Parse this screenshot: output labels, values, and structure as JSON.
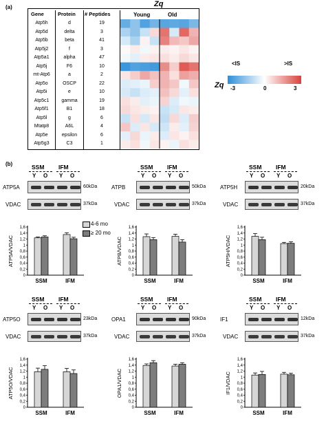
{
  "panel_a": {
    "label": "(a)",
    "zq_title": "Zq",
    "group_young": "Young",
    "group_old": "Old",
    "columns": [
      "Gene",
      "Protein",
      "# Peptides"
    ],
    "rows": [
      {
        "gene": "Atp5h",
        "protein": "d",
        "peptides": "19"
      },
      {
        "gene": "Atp5d",
        "protein": "delta",
        "peptides": "3"
      },
      {
        "gene": "Atp5b",
        "protein": "beta",
        "peptides": "41"
      },
      {
        "gene": "Atp5j2",
        "protein": "f",
        "peptides": "3"
      },
      {
        "gene": "Atp5a1",
        "protein": "alpha",
        "peptides": "47"
      },
      {
        "gene": "Atp5j",
        "protein": "F6",
        "peptides": "10"
      },
      {
        "gene": "mt-Atp6",
        "protein": "a",
        "peptides": "2"
      },
      {
        "gene": "Atp5o",
        "protein": "OSCP",
        "peptides": "22"
      },
      {
        "gene": "Atp5i",
        "protein": "e",
        "peptides": "10"
      },
      {
        "gene": "Atp5c1",
        "protein": "gamma",
        "peptides": "19"
      },
      {
        "gene": "Atp5f1",
        "protein": "B1",
        "peptides": "18"
      },
      {
        "gene": "Atp5l",
        "protein": "g",
        "peptides": "6"
      },
      {
        "gene": "Mtatp8",
        "protein": "A6L",
        "peptides": "4"
      },
      {
        "gene": "Atp5e",
        "protein": "epsilon",
        "peptides": "6"
      },
      {
        "gene": "Atp5g3",
        "protein": "C3",
        "peptides": "1"
      }
    ],
    "heatmap": [
      [
        -2.2,
        -1.6,
        -2.5,
        -2.0,
        -2.4,
        -2.3,
        -2.4,
        -1.9
      ],
      [
        -1.2,
        -1.6,
        -0.8,
        0.6,
        2.2,
        -0.6,
        2.4,
        1.2
      ],
      [
        -0.6,
        -1.2,
        0.2,
        -0.8,
        2.0,
        1.1,
        0.9,
        1.4
      ],
      [
        0.1,
        0.3,
        -0.2,
        0.2,
        0.3,
        0.2,
        0.4,
        0.2
      ],
      [
        -0.2,
        -0.4,
        0.3,
        0.4,
        0.5,
        0.3,
        0.6,
        0.4
      ],
      [
        -2.8,
        -2.5,
        -2.6,
        -2.7,
        1.8,
        0.8,
        2.6,
        2.2
      ],
      [
        0.4,
        0.8,
        1.4,
        1.0,
        1.2,
        0.5,
        1.5,
        1.3
      ],
      [
        -0.5,
        -0.4,
        -0.3,
        0.8,
        1.2,
        0.9,
        -0.2,
        0.9
      ],
      [
        -0.6,
        -0.8,
        -0.5,
        -0.4,
        1.0,
        0.6,
        -0.4,
        0.5
      ],
      [
        0.5,
        0.3,
        -0.4,
        -0.3,
        0.7,
        -0.5,
        -0.2,
        -0.3
      ],
      [
        0.6,
        0.4,
        0.3,
        0.2,
        -0.8,
        -0.6,
        0.4,
        0.3
      ],
      [
        -0.8,
        0.5,
        -0.6,
        0.4,
        -0.9,
        0.6,
        -0.5,
        0.8
      ],
      [
        0.9,
        -0.5,
        0.4,
        -0.6,
        -0.7,
        0.3,
        -0.4,
        0.7
      ],
      [
        -0.4,
        0.6,
        -0.3,
        0.3,
        -0.5,
        0.4,
        0.2,
        0.5
      ],
      [
        0.3,
        0.5,
        -0.2,
        0.4,
        0.2,
        -0.3,
        0.5,
        0.3
      ]
    ],
    "legend": {
      "low_label": "<IS",
      "high_label": ">IS",
      "axis_label": "Zq",
      "min_label": "-3",
      "mid_label": "0",
      "max_label": "3",
      "low_color": "#2e8fd8",
      "high_color": "#d9423c"
    }
  },
  "panel_b": {
    "label": "(b)",
    "legend_young": "4-6 mo",
    "legend_old": "≥ 20 mo",
    "young_color": "#d6d6d6",
    "old_color": "#7d7d7d",
    "group_ssm": "SSM",
    "group_ifm": "IFM",
    "lane_y": "Y",
    "lane_o": "O",
    "y_ticks": [
      "0",
      "0,2",
      "0,4",
      "0,6",
      "0,8",
      "1",
      "1,2",
      "1,4",
      "1,6"
    ],
    "vdac_label": "VDAC",
    "vdac_kda": "37kDa",
    "blots": [
      {
        "protein": "ATP5A",
        "kda": "60kDa",
        "ylabel": "ATP5A/VDAC"
      },
      {
        "protein": "ATPB",
        "kda": "50kDa",
        "ylabel": "ATPB/VDAC"
      },
      {
        "protein": "ATP5H",
        "kda": "20kDa",
        "ylabel": "ATP5H/VDAC"
      },
      {
        "protein": "ATP5O",
        "kda": "23kDa",
        "ylabel": "ATP5O/VDAC"
      },
      {
        "protein": "OPA1",
        "kda": "90kDa",
        "ylabel": "OPA1/VDAC"
      },
      {
        "protein": "IF1",
        "kda": "12kDa",
        "ylabel": "IF1/VDAC"
      }
    ]
  },
  "chart_data": [
    {
      "type": "bar",
      "ylabel": "ATP5A/VDAC",
      "categories": [
        "SSM",
        "IFM"
      ],
      "ylim": [
        0,
        1.6
      ],
      "series": [
        {
          "name": "4-6 mo",
          "values": [
            1.24,
            1.35
          ],
          "errors": [
            0.03,
            0.06
          ]
        },
        {
          "name": "≥ 20 mo",
          "values": [
            1.27,
            1.21
          ],
          "errors": [
            0.04,
            0.05
          ]
        }
      ]
    },
    {
      "type": "bar",
      "ylabel": "ATPB/VDAC",
      "categories": [
        "SSM",
        "IFM"
      ],
      "ylim": [
        0,
        1.6
      ],
      "series": [
        {
          "name": "4-6 mo",
          "values": [
            1.28,
            1.29
          ],
          "errors": [
            0.09,
            0.07
          ]
        },
        {
          "name": "≥ 20 mo",
          "values": [
            1.18,
            1.1
          ],
          "errors": [
            0.07,
            0.08
          ]
        }
      ]
    },
    {
      "type": "bar",
      "ylabel": "ATP5H/VDAC",
      "categories": [
        "SSM",
        "IFM"
      ],
      "ylim": [
        0,
        1.6
      ],
      "series": [
        {
          "name": "4-6 mo",
          "values": [
            1.29,
            1.05
          ],
          "errors": [
            0.09,
            0.04
          ]
        },
        {
          "name": "≥ 20 mo",
          "values": [
            1.18,
            1.06
          ],
          "errors": [
            0.08,
            0.05
          ]
        }
      ]
    },
    {
      "type": "bar",
      "ylabel": "ATP5O/VDAC",
      "categories": [
        "SSM",
        "IFM"
      ],
      "ylim": [
        0,
        1.6
      ],
      "series": [
        {
          "name": "4-6 mo",
          "values": [
            1.18,
            1.18
          ],
          "errors": [
            0.12,
            0.11
          ]
        },
        {
          "name": "≥ 20 mo",
          "values": [
            1.26,
            1.12
          ],
          "errors": [
            0.12,
            0.12
          ]
        }
      ]
    },
    {
      "type": "bar",
      "ylabel": "OPA1/VDAC",
      "categories": [
        "SSM",
        "IFM"
      ],
      "ylim": [
        0,
        1.6
      ],
      "series": [
        {
          "name": "4-6 mo",
          "values": [
            1.39,
            1.37
          ],
          "errors": [
            0.05,
            0.06
          ]
        },
        {
          "name": "≥ 20 mo",
          "values": [
            1.48,
            1.43
          ],
          "errors": [
            0.07,
            0.05
          ]
        }
      ]
    },
    {
      "type": "bar",
      "ylabel": "IF1/VDAC",
      "categories": [
        "SSM",
        "IFM"
      ],
      "ylim": [
        0,
        1.6
      ],
      "series": [
        {
          "name": "4-6 mo",
          "values": [
            1.07,
            1.1
          ],
          "errors": [
            0.07,
            0.06
          ]
        },
        {
          "name": "≥ 20 mo",
          "values": [
            1.09,
            1.08
          ],
          "errors": [
            0.1,
            0.05
          ]
        }
      ]
    }
  ]
}
